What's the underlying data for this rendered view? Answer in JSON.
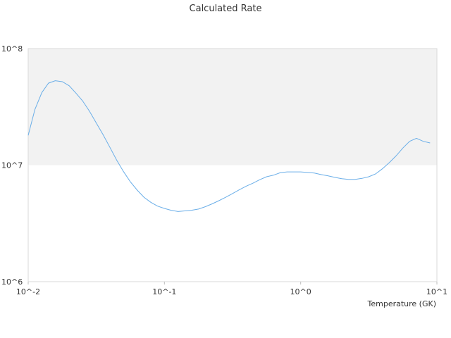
{
  "chart_data": {
    "type": "line",
    "title": "Calculated Rate",
    "xlabel": "Temperature (GK)",
    "ylabel": "",
    "x_scale": "log",
    "y_scale": "log",
    "xlim": [
      0.01,
      10
    ],
    "ylim": [
      1000000,
      100000000
    ],
    "x_ticks": [
      "10^-2",
      "10^-1",
      "10^0",
      "10^1"
    ],
    "y_ticks": [
      "10^6",
      "10^7",
      "10^8"
    ],
    "grid": false,
    "shaded_band": {
      "from": 10000000,
      "to": 100000000,
      "color": "#f2f2f2"
    },
    "series": [
      {
        "color": "#6aaee8",
        "x": [
          0.01,
          0.0112,
          0.0126,
          0.0141,
          0.0158,
          0.0178,
          0.02,
          0.0224,
          0.0251,
          0.0282,
          0.0316,
          0.0355,
          0.0398,
          0.0447,
          0.0501,
          0.0562,
          0.0631,
          0.0708,
          0.0794,
          0.0891,
          0.1,
          0.112,
          0.126,
          0.141,
          0.158,
          0.178,
          0.2,
          0.224,
          0.251,
          0.282,
          0.316,
          0.355,
          0.398,
          0.447,
          0.501,
          0.562,
          0.631,
          0.708,
          0.794,
          0.891,
          1.0,
          1.12,
          1.26,
          1.41,
          1.58,
          1.78,
          2.0,
          2.24,
          2.51,
          2.82,
          3.16,
          3.55,
          3.98,
          4.47,
          5.01,
          5.62,
          6.31,
          7.08,
          7.94,
          8.91
        ],
        "y": [
          18000000,
          30000000,
          42000000,
          50500000,
          53000000,
          52000000,
          48000000,
          41500000,
          35500000,
          29000000,
          23000000,
          18200000,
          14200000,
          11000000,
          8800000,
          7200000,
          6100000,
          5300000,
          4800000,
          4450000,
          4250000,
          4100000,
          4000000,
          4050000,
          4100000,
          4200000,
          4400000,
          4650000,
          4950000,
          5300000,
          5700000,
          6150000,
          6600000,
          7000000,
          7500000,
          7950000,
          8200000,
          8600000,
          8750000,
          8750000,
          8750000,
          8650000,
          8550000,
          8300000,
          8100000,
          7850000,
          7650000,
          7550000,
          7550000,
          7700000,
          7950000,
          8400000,
          9300000,
          10500000,
          12000000,
          14000000,
          16000000,
          17000000,
          16000000,
          15500000
        ]
      }
    ]
  }
}
